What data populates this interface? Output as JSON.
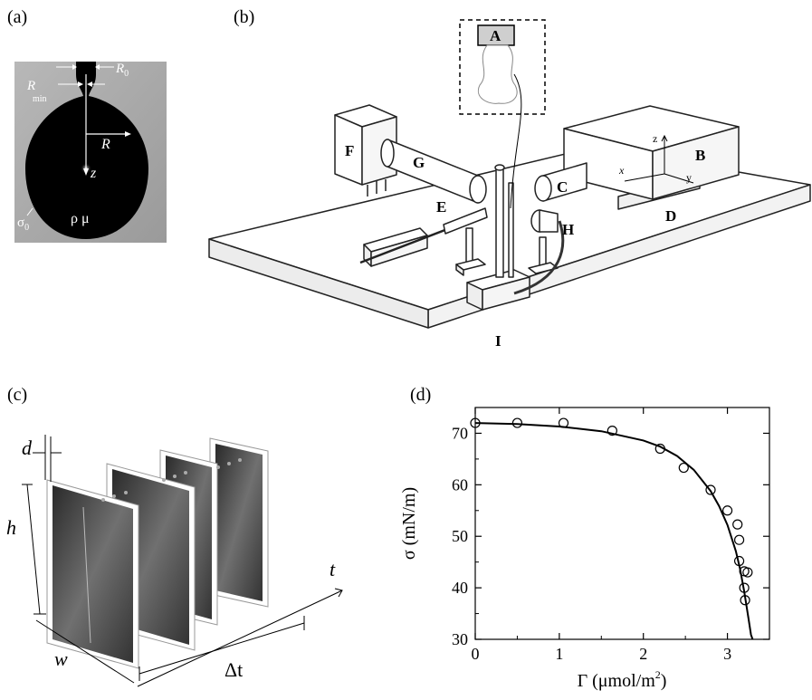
{
  "panels": {
    "a": {
      "label": "(a)",
      "symbols": {
        "R0": "R",
        "R0_sub": "0",
        "Rmin": "R",
        "Rmin_sub": "min",
        "R": "R",
        "z": "z",
        "rho_mu": "ρ μ",
        "sigma0": "σ",
        "sigma0_sub": "0"
      }
    },
    "b": {
      "label": "(b)",
      "component_labels": [
        "A",
        "B",
        "C",
        "D",
        "E",
        "F",
        "G",
        "H",
        "I"
      ],
      "axis_labels": {
        "x": "x",
        "y": "y",
        "z": "z"
      }
    },
    "c": {
      "label": "(c)",
      "symbols": {
        "d": "d",
        "h": "h",
        "w": "w",
        "t": "t",
        "dt": "Δt"
      }
    },
    "d": {
      "label": "(d)",
      "ylabel": "σ (mN/m)",
      "xlabel_main": "Γ (μmol/m",
      "xlabel_sup": "2",
      "xlabel_end": ")"
    }
  },
  "chart_data": {
    "type": "scatter",
    "xlim": [
      0,
      3.5
    ],
    "ylim": [
      30,
      75
    ],
    "xticks": [
      0,
      1,
      2,
      3
    ],
    "yticks": [
      30,
      40,
      50,
      60,
      70
    ],
    "series": [
      {
        "marker": "open-circle",
        "x": [
          0.0,
          0.5,
          1.05,
          1.63,
          2.2,
          2.48,
          2.8,
          3.0,
          3.12,
          3.14,
          3.14,
          3.2,
          3.2,
          3.21,
          3.24
        ],
        "y": [
          72.0,
          72.0,
          72.0,
          70.5,
          67.0,
          63.3,
          59.0,
          55.0,
          52.3,
          49.3,
          45.2,
          43.2,
          40.0,
          37.6,
          43.0
        ]
      },
      {
        "style": "line",
        "x": [
          0.0,
          0.5,
          1.0,
          1.5,
          2.0,
          2.2,
          2.4,
          2.6,
          2.8,
          2.9,
          3.0,
          3.1,
          3.15,
          3.2,
          3.25,
          3.28,
          3.3
        ],
        "y": [
          72.0,
          71.8,
          71.3,
          70.4,
          68.6,
          67.4,
          65.6,
          62.9,
          58.8,
          55.9,
          52.2,
          47.1,
          43.7,
          39.3,
          34.1,
          30.9,
          30.0
        ]
      }
    ]
  }
}
